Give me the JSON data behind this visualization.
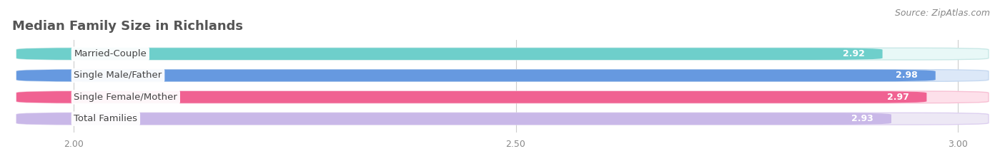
{
  "title": "Median Family Size in Richlands",
  "source": "Source: ZipAtlas.com",
  "categories": [
    "Married-Couple",
    "Single Male/Father",
    "Single Female/Mother",
    "Total Families"
  ],
  "values": [
    2.92,
    2.98,
    2.97,
    2.93
  ],
  "bar_colors": [
    "#6ecfcb",
    "#6699e0",
    "#f06292",
    "#c9b8e8"
  ],
  "bar_bg_colors": [
    "#e8f8f7",
    "#dce8f8",
    "#fde0ea",
    "#ede8f5"
  ],
  "bar_border_colors": [
    "#c8e8e6",
    "#c5d8f0",
    "#f8c0d4",
    "#ddd0f0"
  ],
  "value_label_color": "#ffffff",
  "xlim_min": 1.93,
  "xlim_max": 3.04,
  "xticks": [
    2.0,
    2.5,
    3.0
  ],
  "xtick_labels": [
    "2.00",
    "2.50",
    "3.00"
  ],
  "title_fontsize": 13,
  "source_fontsize": 9,
  "bar_label_fontsize": 9.5,
  "value_fontsize": 9,
  "tick_fontsize": 9,
  "background_color": "#ffffff",
  "grid_color": "#cccccc"
}
